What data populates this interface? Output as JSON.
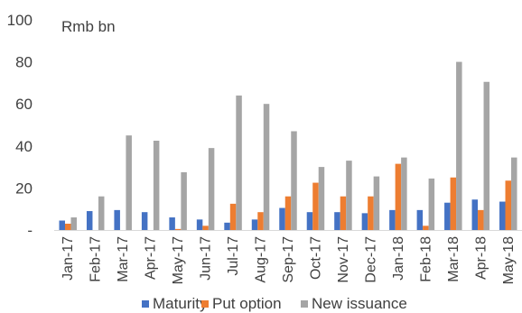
{
  "chart_data": {
    "type": "bar",
    "unit_label": "Rmb bn",
    "categories": [
      "Jan-17",
      "Feb-17",
      "Mar-17",
      "Apr-17",
      "May-17",
      "Jun-17",
      "Jul-17",
      "Aug-17",
      "Sep-17",
      "Oct-17",
      "Nov-17",
      "Dec-17",
      "Jan-18",
      "Feb-18",
      "Mar-18",
      "Apr-18",
      "May-18"
    ],
    "series": [
      {
        "name": "Maturity",
        "color": "#4472C4",
        "values": [
          4.5,
          9,
          9.5,
          8.5,
          6,
          5,
          3.5,
          5,
          10.5,
          8.5,
          8.5,
          8,
          9.5,
          9.5,
          13,
          14.5,
          13.5
        ]
      },
      {
        "name": "Put option",
        "color": "#ED7D31",
        "values": [
          3,
          0,
          0,
          0,
          0.5,
          2,
          12.5,
          8.5,
          16,
          22.5,
          16,
          16,
          31.5,
          2,
          25,
          9.5,
          23.5
        ]
      },
      {
        "name": "New issuance",
        "color": "#A5A5A5",
        "values": [
          6,
          16,
          45,
          42.5,
          27.5,
          39,
          64,
          60,
          47,
          30,
          33,
          25.5,
          34.5,
          24.5,
          80,
          70.5,
          34.5
        ]
      }
    ],
    "yticks": [
      "-",
      "20",
      "40",
      "60",
      "80",
      "100"
    ],
    "ylim": [
      0,
      100
    ],
    "legend": "bottom",
    "grid": false
  }
}
